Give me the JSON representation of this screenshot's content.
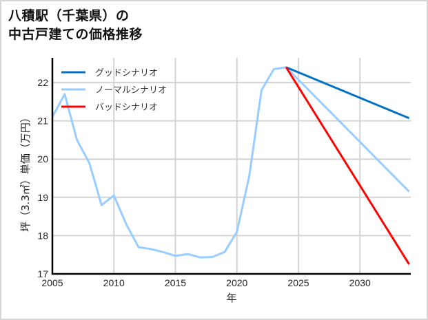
{
  "title": {
    "line1": "八積駅（千葉県）の",
    "line2": "中古戸建ての価格推移"
  },
  "chart_data": {
    "type": "line",
    "title": "八積駅（千葉県）の中古戸建ての価格推移",
    "xlabel": "年",
    "ylabel": "坪（3.3㎡）単価（万円）",
    "xlim": [
      2005,
      2034
    ],
    "ylim": [
      17,
      22.6
    ],
    "xticks": [
      2005,
      2010,
      2015,
      2020,
      2025,
      2030
    ],
    "yticks": [
      17,
      18,
      19,
      20,
      21,
      22
    ],
    "grid": true,
    "legend_position": "upper left",
    "series": [
      {
        "name": "グッドシナリオ",
        "color": "#0072c6",
        "x": [
          2024,
          2034
        ],
        "values": [
          22.4,
          21.07
        ]
      },
      {
        "name": "ノーマルシナリオ",
        "color": "#99ccff",
        "x": [
          2005,
          2006,
          2007,
          2008,
          2009,
          2010,
          2011,
          2012,
          2013,
          2014,
          2015,
          2016,
          2017,
          2018,
          2019,
          2020,
          2021,
          2022,
          2023,
          2024,
          2034
        ],
        "values": [
          21.1,
          21.7,
          20.5,
          19.9,
          18.8,
          19.05,
          18.3,
          17.7,
          17.65,
          17.57,
          17.47,
          17.52,
          17.43,
          17.44,
          17.57,
          18.1,
          19.55,
          21.8,
          22.35,
          22.4,
          19.15
        ]
      },
      {
        "name": "バッドシナリオ",
        "color": "#ff0000",
        "x": [
          2024,
          2034
        ],
        "values": [
          22.4,
          17.25
        ]
      }
    ]
  }
}
